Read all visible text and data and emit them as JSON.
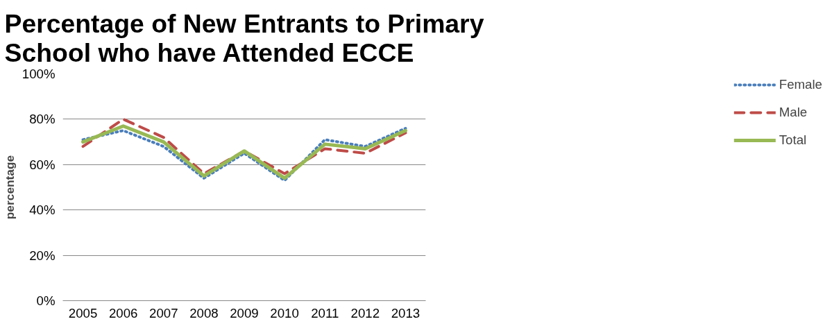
{
  "chart_data": {
    "type": "line",
    "title": "Percentage of New Entrants to Primary School who have Attended ECCE",
    "ylabel": "percentage",
    "categories": [
      "2005",
      "2006",
      "2007",
      "2008",
      "2009",
      "2010",
      "2011",
      "2012",
      "2013"
    ],
    "series": [
      {
        "name": "Female",
        "color": "#4a7ebb",
        "line_style": "dotted",
        "values": [
          71,
          75,
          68,
          54,
          65,
          53,
          71,
          68,
          76
        ]
      },
      {
        "name": "Male",
        "color": "#be4b48",
        "line_style": "dashed",
        "values": [
          68,
          80,
          72,
          56,
          66,
          56,
          67,
          65,
          74
        ]
      },
      {
        "name": "Total",
        "color": "#98b954",
        "line_style": "solid",
        "values": [
          70,
          77,
          70,
          55,
          66,
          54,
          69,
          67,
          75
        ]
      }
    ],
    "ylim": [
      0,
      100
    ],
    "yticks": [
      {
        "value": 0,
        "label": "0%"
      },
      {
        "value": 20,
        "label": "20%"
      },
      {
        "value": 40,
        "label": "40%"
      },
      {
        "value": 60,
        "label": "60%"
      },
      {
        "value": 80,
        "label": "80%"
      },
      {
        "value": 100,
        "label": "100%"
      }
    ],
    "grid": "y",
    "legend": "right",
    "marker": "none"
  }
}
